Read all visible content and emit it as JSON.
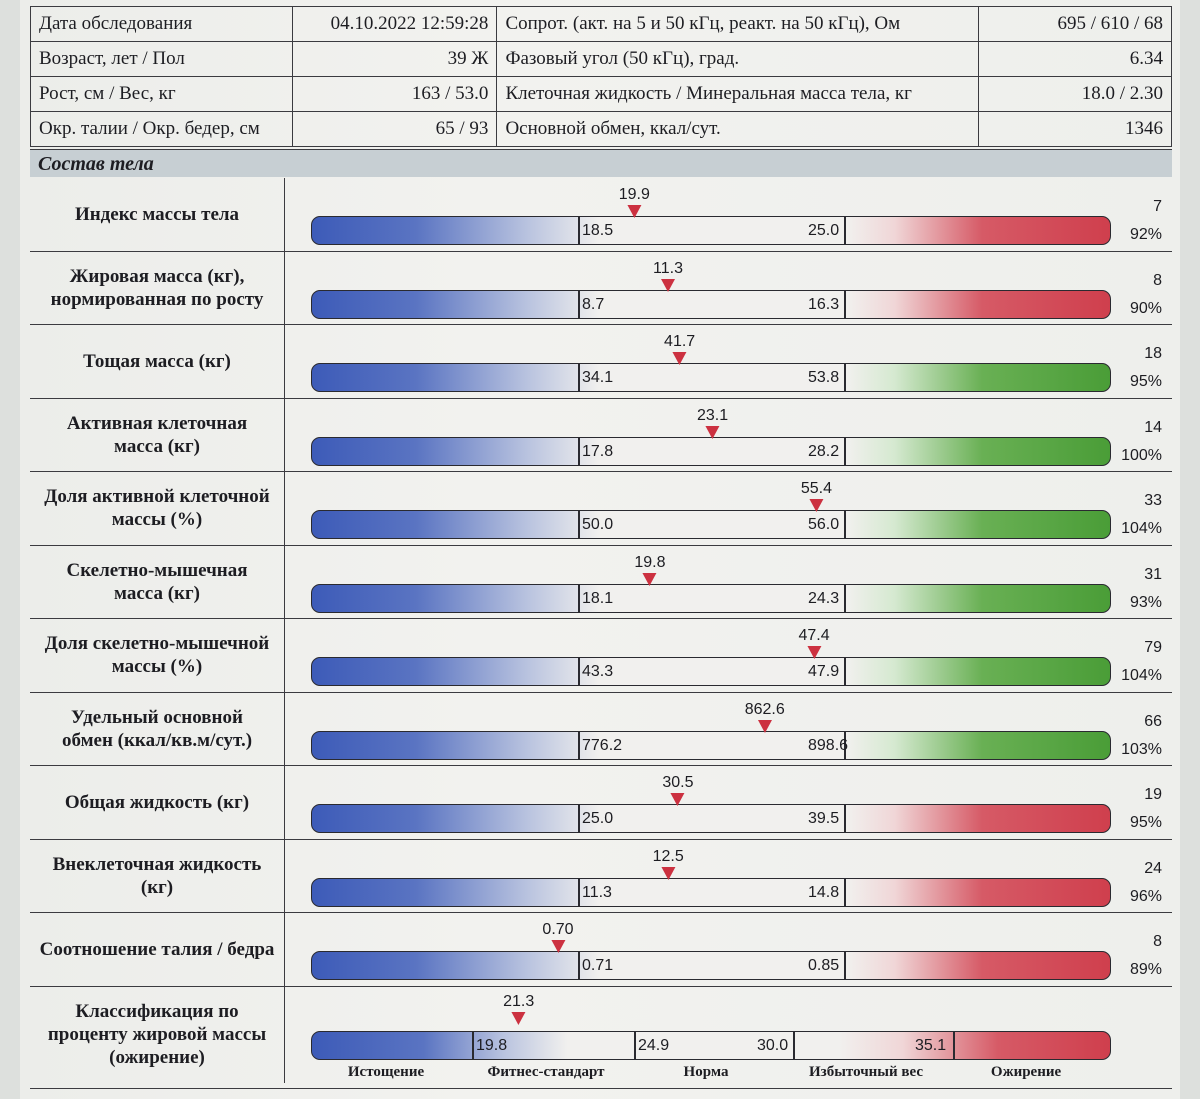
{
  "header": {
    "rows": [
      {
        "l_label": "Дата обследования",
        "l_value": "04.10.2022 12:59:28",
        "r_label": "Сопрот. (акт. на 5 и 50 кГц, реакт. на 50 кГц), Ом",
        "r_value": "695 / 610 / 68"
      },
      {
        "l_label": "Возраст, лет / Пол",
        "l_value": "39 Ж",
        "r_label": "Фазовый угол (50 кГц), град.",
        "r_value": "6.34"
      },
      {
        "l_label": "Рост, см / Вес, кг",
        "l_value": "163 / 53.0",
        "r_label": "Клеточная жидкость / Минеральная масса тела, кг",
        "r_value": "18.0 / 2.30"
      },
      {
        "l_label": "Окр. талии / Окр. бедер, см",
        "l_value": "65 / 93",
        "r_label": "Основной обмен, ккал/сут.",
        "r_value": "1346"
      }
    ]
  },
  "section_title": "Состав тела",
  "metrics": [
    {
      "label": "Индекс массы тела",
      "value": "19.9",
      "low": "18.5",
      "high": "25.0",
      "right_top": "7",
      "right_bottom": "92%",
      "scheme": "red",
      "colors": {
        "marker": "#cc3140"
      }
    },
    {
      "label": "Жировая масса (кг),\nнормированная по росту",
      "value": "11.3",
      "low": "8.7",
      "high": "16.3",
      "right_top": "8",
      "right_bottom": "90%",
      "scheme": "red"
    },
    {
      "label": "Тощая масса (кг)",
      "value": "41.7",
      "low": "34.1",
      "high": "53.8",
      "right_top": "18",
      "right_bottom": "95%",
      "scheme": "green"
    },
    {
      "label": "Активная клеточная\nмасса (кг)",
      "value": "23.1",
      "low": "17.8",
      "high": "28.2",
      "right_top": "14",
      "right_bottom": "100%",
      "scheme": "green"
    },
    {
      "label": "Доля активной клеточной\nмассы (%)",
      "value": "55.4",
      "low": "50.0",
      "high": "56.0",
      "right_top": "33",
      "right_bottom": "104%",
      "scheme": "green"
    },
    {
      "label": "Скелетно-мышечная\nмасса (кг)",
      "value": "19.8",
      "low": "18.1",
      "high": "24.3",
      "right_top": "31",
      "right_bottom": "93%",
      "scheme": "green"
    },
    {
      "label": "Доля скелетно-мышечной\nмассы (%)",
      "value": "47.4",
      "low": "43.3",
      "high": "47.9",
      "right_top": "79",
      "right_bottom": "104%",
      "scheme": "green"
    },
    {
      "label": "Удельный основной\nобмен (ккал/кв.м/сут.)",
      "value": "862.6",
      "low": "776.2",
      "high": "898.6",
      "right_top": "66",
      "right_bottom": "103%",
      "scheme": "green"
    },
    {
      "label": "Общая жидкость (кг)",
      "value": "30.5",
      "low": "25.0",
      "high": "39.5",
      "right_top": "19",
      "right_bottom": "95%",
      "scheme": "red"
    },
    {
      "label": "Внеклеточная жидкость\n(кг)",
      "value": "12.5",
      "low": "11.3",
      "high": "14.8",
      "right_top": "24",
      "right_bottom": "96%",
      "scheme": "red"
    },
    {
      "label": "Соотношение талия / бедра",
      "value": "0.70",
      "low": "0.71",
      "high": "0.85",
      "right_top": "8",
      "right_bottom": "89%",
      "scheme": "red"
    }
  ],
  "classification": {
    "label": "Классификация по\nпроценту жировой массы\n(ожирение)",
    "value": "21.3",
    "thresholds": [
      "19.8",
      "24.9",
      "30.0",
      "35.1"
    ],
    "categories": [
      "Истощение",
      "Фитнес-стандарт",
      "Норма",
      "Избыточный вес",
      "Ожирение"
    ]
  },
  "colors": {
    "marker": "#cc3140",
    "low_blue": "#3d5bb8",
    "high_red": "#cf3f4d",
    "high_green": "#4a9d37"
  }
}
